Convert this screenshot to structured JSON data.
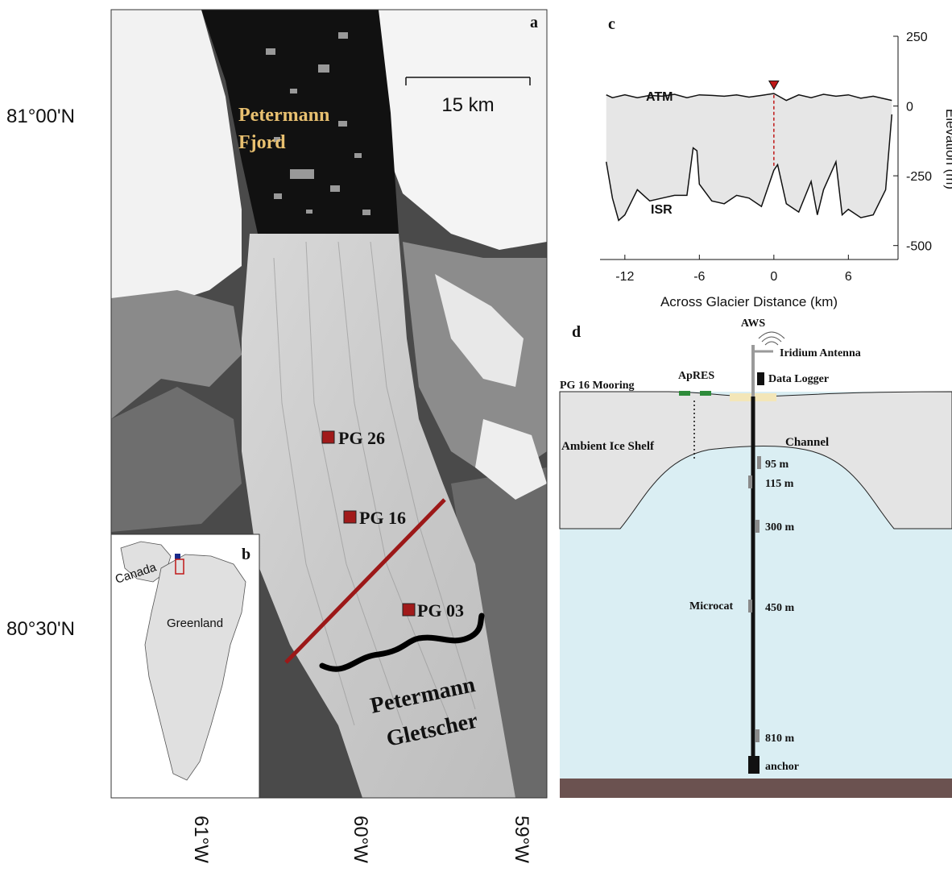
{
  "panel_a": {
    "panel_letter": "a",
    "lat_labels": [
      "81°00'N",
      "80°30'N"
    ],
    "lon_labels": [
      "61°W",
      "60°W",
      "59°W"
    ],
    "scale_bar_label": "15 km",
    "fjord_label_1": "Petermann",
    "fjord_label_2": "Fjord",
    "glacier_label_1": "Petermann",
    "glacier_label_2": "Gletscher",
    "moorings": [
      "PG 26",
      "PG 16",
      "PG 03"
    ],
    "colors": {
      "mooring": "#a11a1a",
      "transect": "#9c1818",
      "fjord_label": "#e8c070"
    }
  },
  "panel_b": {
    "panel_letter": "b",
    "canada_label": "Canada",
    "greenland_label": "Greenland"
  },
  "panel_c": {
    "panel_letter": "c",
    "atm_label": "ATM",
    "isr_label": "ISR",
    "xlabel": "Across Glacier Distance (km)",
    "ylabel": "Elevation (m)",
    "xticks": [
      "-12",
      "-6",
      "0",
      "6"
    ],
    "yticks": [
      "250",
      "0",
      "-250",
      "-500"
    ]
  },
  "chart_data": {
    "type": "area",
    "title": "",
    "xlabel": "Across Glacier Distance (km)",
    "ylabel": "Elevation (m)",
    "xlim": [
      -14,
      10
    ],
    "ylim": [
      -550,
      250
    ],
    "series": [
      {
        "name": "ATM",
        "x": [
          -13.5,
          -13,
          -12,
          -11,
          -10,
          -9,
          -8,
          -7,
          -6,
          -5,
          -4,
          -3,
          -2,
          -1,
          0,
          1,
          2,
          3,
          4,
          5,
          6,
          7,
          8,
          9,
          9.5
        ],
        "values": [
          40,
          30,
          40,
          30,
          38,
          35,
          42,
          30,
          40,
          38,
          35,
          40,
          32,
          38,
          45,
          20,
          40,
          30,
          42,
          35,
          40,
          28,
          35,
          25,
          20
        ]
      },
      {
        "name": "ISR",
        "x": [
          -13.5,
          -13,
          -12.5,
          -12,
          -11,
          -10,
          -9,
          -8,
          -7,
          -6.5,
          -6.2,
          -6,
          -5,
          -4,
          -3,
          -2,
          -1,
          0,
          0.3,
          1,
          2,
          3,
          3.5,
          4,
          5,
          5.5,
          6,
          7,
          8,
          9,
          9.5
        ],
        "values": [
          -200,
          -330,
          -410,
          -390,
          -300,
          -340,
          -330,
          -320,
          -320,
          -150,
          -160,
          -280,
          -340,
          -350,
          -320,
          -330,
          -360,
          -230,
          -210,
          -350,
          -380,
          -270,
          -390,
          -300,
          -200,
          -390,
          -370,
          -400,
          -390,
          -300,
          -30
        ]
      }
    ],
    "marker_x": 0
  },
  "panel_d": {
    "panel_letter": "d",
    "aws_label": "AWS",
    "iridium_label": "Iridium Antenna",
    "logger_label": "Data Logger",
    "apres_label": "ApRES",
    "mooring_label": "PG 16 Mooring",
    "ambient_label": "Ambient Ice Shelf",
    "channel_label": "Channel",
    "microcat_label": "Microcat",
    "anchor_label": "anchor",
    "depths": [
      "95 m",
      "115 m",
      "300 m",
      "450 m",
      "810 m"
    ],
    "colors": {
      "ice": "#e4e4e4",
      "water": "#daeef3",
      "seabed": "#6b5250"
    }
  }
}
